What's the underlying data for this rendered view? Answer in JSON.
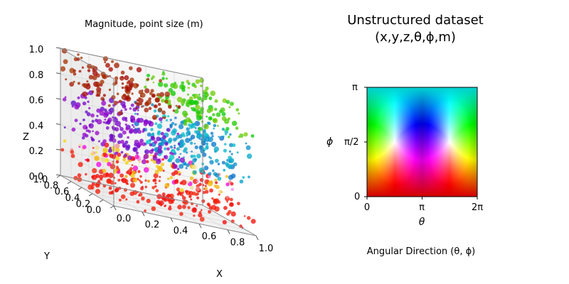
{
  "figure": {
    "title_line1": "Unstructured dataset",
    "title_line2": "(x,y,z,θ,ϕ,m)"
  },
  "chart_data": [
    {
      "type": "scatter",
      "projection": "3d",
      "title": "Magnitude, point size (m)",
      "xlabel": "X",
      "ylabel": "Y",
      "zlabel": "Z",
      "xlim": [
        0.0,
        1.0
      ],
      "ylim": [
        0.0,
        1.0
      ],
      "zlim": [
        0.0,
        1.0
      ],
      "xticks": [
        "0.0",
        "0.2",
        "0.4",
        "0.6",
        "0.8",
        "1.0"
      ],
      "yticks": [
        "0.0",
        "0.2",
        "0.4",
        "0.6",
        "0.8",
        "1.0"
      ],
      "zticks": [
        "0.0",
        "0.2",
        "0.4",
        "0.6",
        "0.8",
        "1.0"
      ],
      "grid": true,
      "point_count": 1000,
      "color_encoding": "angular direction (θ, ϕ)",
      "size_encoding": "magnitude m",
      "dominant_colors": {
        "low_z": "#ff0000",
        "mid_low_z": "#ffbf00",
        "mid_z": "#7f00cc",
        "mid_z_positive_x": "#22aadd",
        "high_z": "#aa2200",
        "high_z_positive_x": "#44cc44"
      }
    },
    {
      "type": "heatmap",
      "title": "",
      "xlabel": "θ",
      "ylabel": "ϕ",
      "caption": "Angular Direction (θ, ϕ)",
      "xlim": [
        0,
        6.2832
      ],
      "ylim": [
        0,
        3.1416
      ],
      "xticks": [
        "0",
        "π",
        "2π"
      ],
      "yticks": [
        "0",
        "π/2",
        "π"
      ],
      "corner_colors": {
        "top_left": "#00ffff",
        "top_center": "#00ff00",
        "top_right": "#ffff00",
        "center": "#000000",
        "bottom_left": "#ff00ff",
        "bottom_center": "#ff0000",
        "bottom_right": "#ff0000",
        "middle_left": "#0000ff",
        "middle_right": "#ff0000"
      }
    }
  ]
}
